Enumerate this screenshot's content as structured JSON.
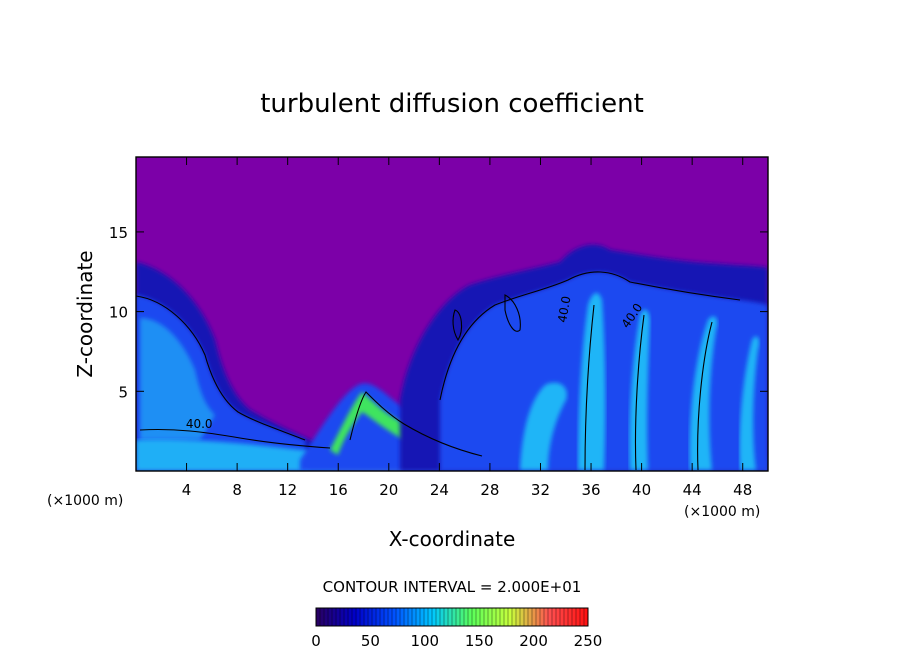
{
  "chart_data": {
    "type": "heatmap",
    "title": "turbulent diffusion coefficient",
    "xlabel": "X-coordinate",
    "ylabel": "Z-coordinate",
    "x_unit": "(×1000 m)",
    "x_unit_right": "(×1000 m)",
    "xlim": [
      0,
      50
    ],
    "ylim": [
      0,
      19.7
    ],
    "x_ticks": [
      4,
      8,
      12,
      16,
      20,
      24,
      28,
      32,
      36,
      40,
      44,
      48
    ],
    "y_ticks": [
      5,
      10,
      15
    ],
    "contour_labels": [
      {
        "text": "40.0",
        "x": 5,
        "z": 2.7
      },
      {
        "text": "40.0",
        "x": 39.5,
        "z": 9.6
      },
      {
        "text": "40.0",
        "x": 34.2,
        "z": 10.1
      }
    ],
    "contour_interval_text": "CONTOUR INTERVAL = 2.000E+01",
    "colorbar": {
      "min": 0,
      "max": 250,
      "ticks": [
        0,
        50,
        100,
        150,
        200,
        250
      ],
      "colors": [
        "#2a0060",
        "#0000c8",
        "#0050ff",
        "#00c8ff",
        "#5aff5a",
        "#c8ff3c",
        "#ff5050",
        "#ff1010"
      ]
    },
    "colors": {
      "background_field": "#7c00a8",
      "dark_blue": "#1212b4",
      "mid_blue": "#1c48f0",
      "cyan": "#20c8f8",
      "green": "#46ff46"
    }
  }
}
